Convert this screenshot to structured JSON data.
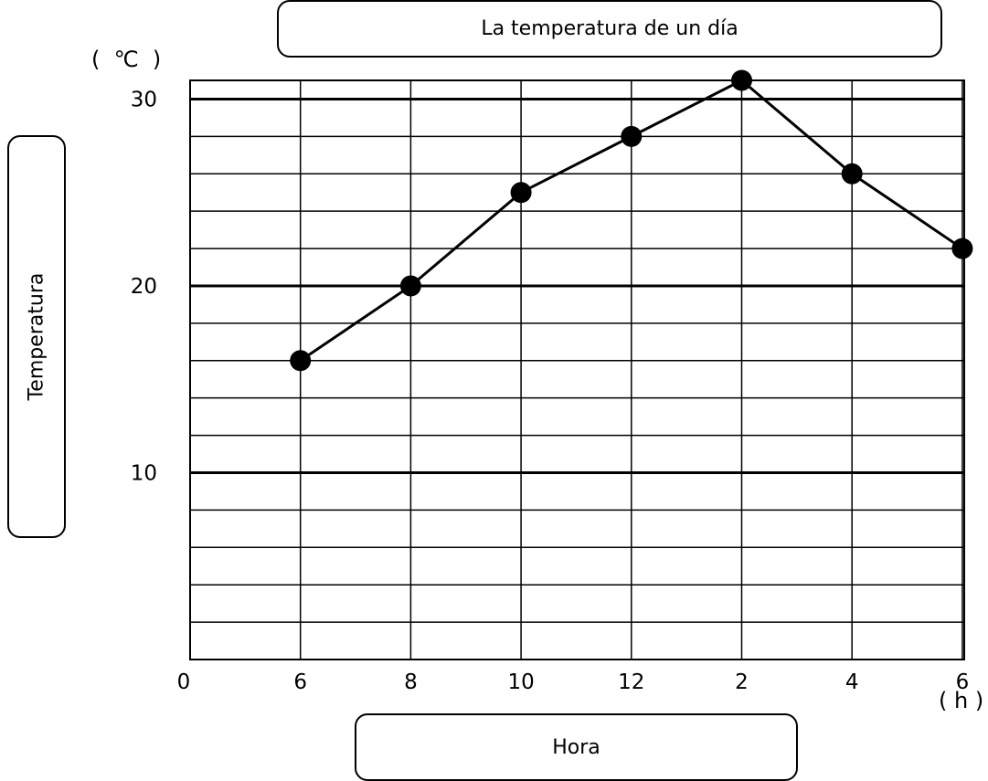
{
  "chart_data": {
    "type": "line",
    "title": "La temperatura de un día",
    "xlabel": "Hora",
    "ylabel": "Temperatura",
    "x_unit": "( h )",
    "y_unit": "(  ℃  )",
    "origin_label": "0",
    "categories": [
      "6",
      "8",
      "10",
      "12",
      "2",
      "4",
      "6"
    ],
    "series": [
      {
        "values": [
          16,
          20,
          25,
          28,
          31,
          26,
          22
        ]
      }
    ],
    "y_ticks": [
      10,
      20,
      30
    ],
    "ylim": [
      0,
      31
    ],
    "grid": true,
    "legend": "none",
    "colors": {
      "line": "#000000",
      "marker": "#000000",
      "grid": "#000000"
    }
  }
}
